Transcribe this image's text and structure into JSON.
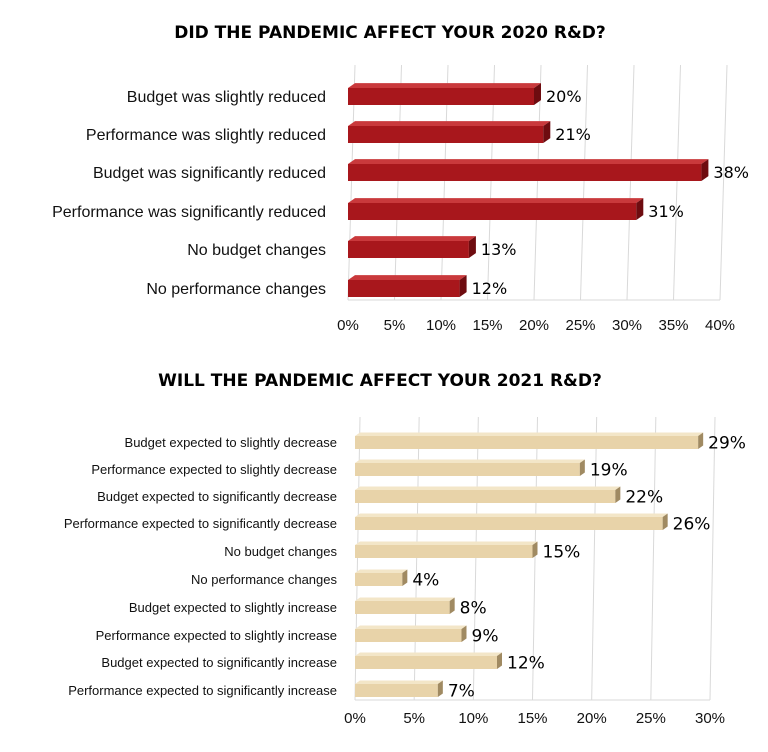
{
  "chart_data": [
    {
      "type": "bar",
      "orientation": "horizontal",
      "title": "DID THE PANDEMIC AFFECT YOUR 2020 R&D?",
      "categories": [
        "Budget was slightly reduced",
        "Performance was slightly reduced",
        "Budget was significantly reduced",
        "Performance was significantly reduced",
        "No budget changes",
        "No performance changes"
      ],
      "values": [
        20,
        21,
        38,
        31,
        13,
        12
      ],
      "value_labels": [
        "20%",
        "21%",
        "38%",
        "31%",
        "13%",
        "12%"
      ],
      "xlim": [
        0,
        40
      ],
      "xticks": [
        "0%",
        "5%",
        "10%",
        "15%",
        "20%",
        "25%",
        "30%",
        "35%",
        "40%"
      ],
      "grid": true,
      "colors": {
        "bar": "#a8171c",
        "bar_dark": "#6e0c10",
        "bar_top": "#c9393c"
      }
    },
    {
      "type": "bar",
      "orientation": "horizontal",
      "title": "WILL THE  PANDEMIC AFFECT YOUR 2021 R&D?",
      "categories": [
        "Budget expected to slightly decrease",
        "Performance expected to slightly decrease",
        "Budget expected to significantly decrease",
        "Performance expected to significantly decrease",
        "No budget changes",
        "No performance changes",
        "Budget expected to slightly increase",
        "Performance expected to slightly increase",
        "Budget expected to significantly increase",
        "Performance expected to significantly increase"
      ],
      "values": [
        29,
        19,
        22,
        26,
        15,
        4,
        8,
        9,
        12,
        7
      ],
      "value_labels": [
        "29%",
        "19%",
        "22%",
        "26%",
        "15%",
        "4%",
        "8%",
        "9%",
        "12%",
        "7%"
      ],
      "xlim": [
        0,
        30
      ],
      "xticks": [
        "0%",
        "5%",
        "10%",
        "15%",
        "20%",
        "25%",
        "30%"
      ],
      "grid": true,
      "colors": {
        "bar": "#e8d3a9",
        "bar_dark": "#a08a62",
        "bar_top": "#f3e6c8"
      }
    }
  ]
}
